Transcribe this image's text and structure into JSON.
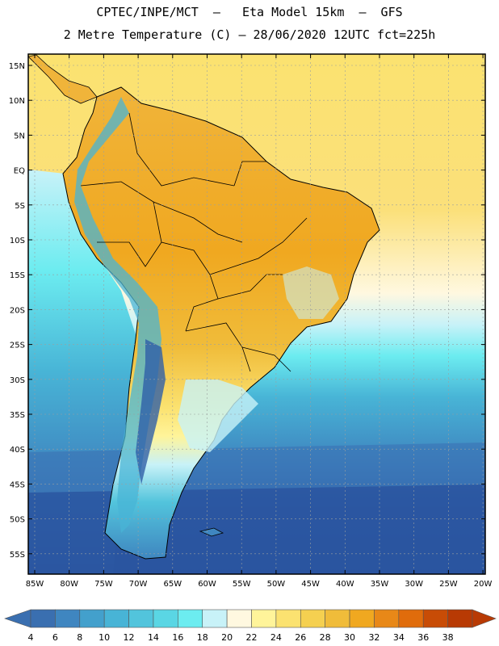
{
  "header": {
    "title_line1": "CPTEC/INPE/MCT  –   Eta Model 15km  –  GFS",
    "title_line2": "2 Metre Temperature (C) – 28/06/2020 12UTC fct=225h"
  },
  "map": {
    "lat_labels": [
      "15N",
      "10N",
      "5N",
      "EQ",
      "5S",
      "10S",
      "15S",
      "20S",
      "25S",
      "30S",
      "35S",
      "40S",
      "45S",
      "50S",
      "55S"
    ],
    "lon_labels": [
      "85W",
      "80W",
      "75W",
      "70W",
      "65W",
      "60W",
      "55W",
      "50W",
      "45W",
      "40W",
      "35W",
      "30W",
      "25W",
      "20W"
    ]
  },
  "colorbar": {
    "labels": [
      "4",
      "6",
      "8",
      "10",
      "12",
      "14",
      "16",
      "18",
      "20",
      "22",
      "24",
      "26",
      "28",
      "30",
      "32",
      "34",
      "36",
      "38"
    ],
    "colors": [
      "#3a6fb0",
      "#3f86c0",
      "#43a0cc",
      "#48b4d6",
      "#52c4dc",
      "#5ad6e4",
      "#6cecf0",
      "#c8f2f8",
      "#fff8e0",
      "#fff49a",
      "#fbe270",
      "#f5d050",
      "#f0bc3a",
      "#f0a820",
      "#e88818",
      "#e06c0c",
      "#c84c06",
      "#b83a04"
    ]
  }
}
